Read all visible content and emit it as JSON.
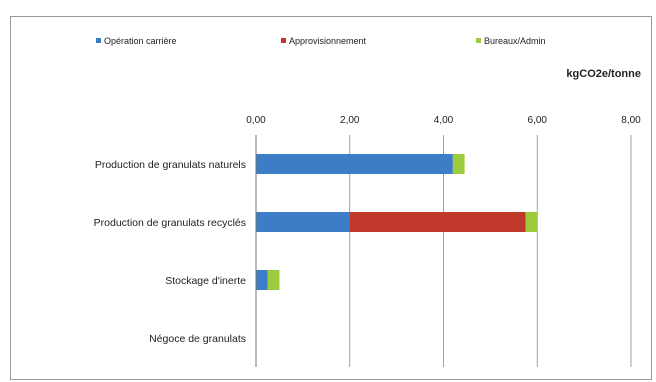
{
  "chart_data": {
    "type": "bar",
    "stacked": true,
    "orientation": "horizontal",
    "unit": "kgCO2e/tonne",
    "categories": [
      "Production de granulats naturels",
      "Production de granulats recyclés",
      "Stockage d'inerte",
      "Négoce de granulats"
    ],
    "series": [
      {
        "name": "Opération carrière",
        "color": "#3d7cc6",
        "values": [
          4.2,
          2.0,
          0.25,
          0.0
        ]
      },
      {
        "name": "Approvisionnement",
        "color": "#c0392b",
        "values": [
          0.0,
          3.75,
          0.0,
          0.0
        ]
      },
      {
        "name": "Bureaux/Admin",
        "color": "#9ccc3b",
        "values": [
          0.25,
          0.25,
          0.25,
          0.0
        ]
      }
    ],
    "xlim": [
      0,
      8
    ],
    "xticks": [
      "0,00",
      "2,00",
      "4,00",
      "6,00",
      "8,00"
    ],
    "grid": true,
    "axis_position": "top",
    "legend_position": "top"
  }
}
